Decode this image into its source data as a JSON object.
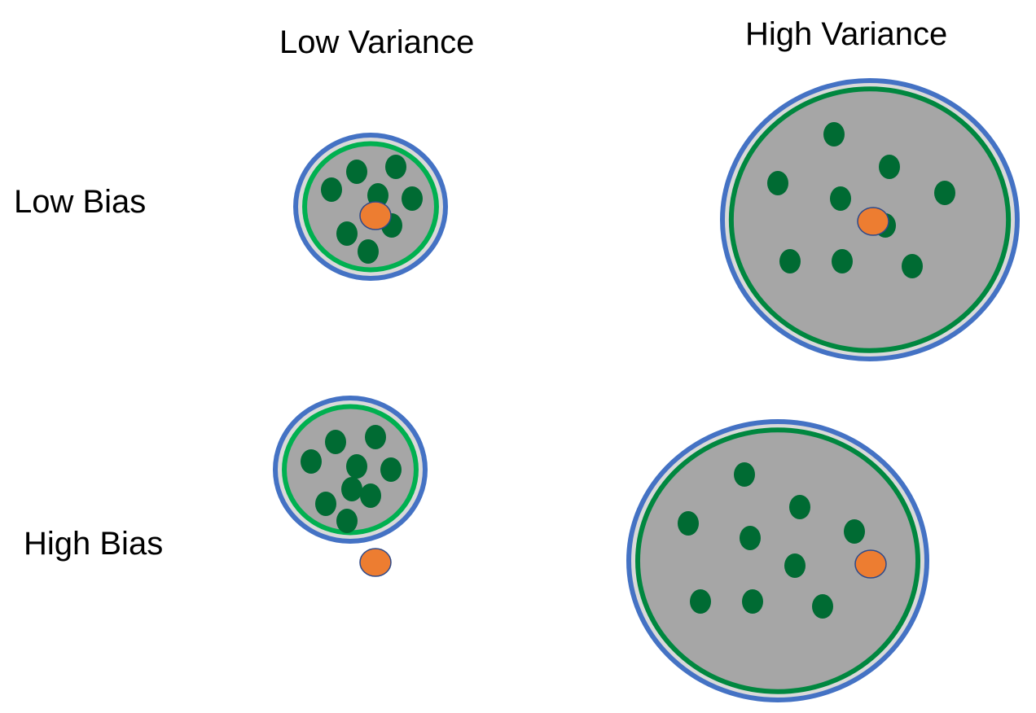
{
  "columns": {
    "low_variance": "Low Variance",
    "high_variance": "High Variance"
  },
  "rows": {
    "low_bias": "Low Bias",
    "high_bias": "High Bias"
  },
  "colors": {
    "outer_ring": "#4472C4",
    "inner_ring_light": "#00B050",
    "inner_ring_dark": "#00873F",
    "disk_fill": "#A6A6A6",
    "gap_fill": "#D9D9D9",
    "prediction_dot": "#006B33",
    "target_dot": "#ED7D31",
    "target_outline": "#2F4A8A"
  }
}
